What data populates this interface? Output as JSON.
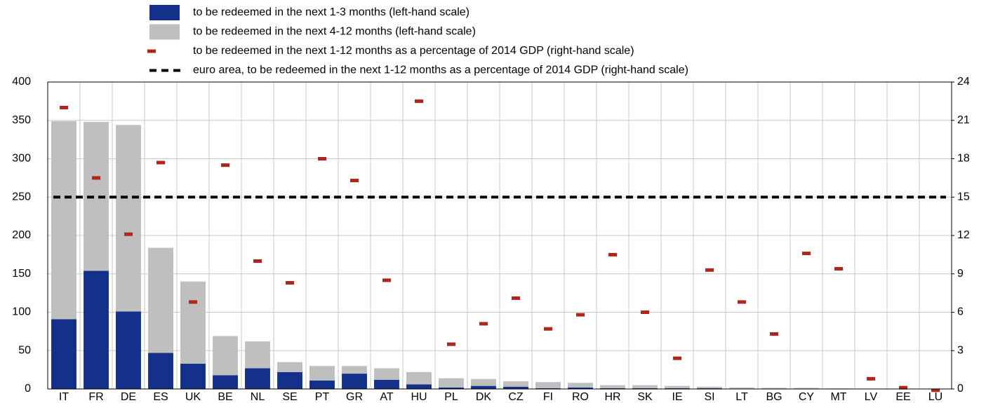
{
  "chart_data": {
    "type": "bar",
    "categories": [
      "IT",
      "FR",
      "DE",
      "ES",
      "UK",
      "BE",
      "NL",
      "SE",
      "PT",
      "GR",
      "AT",
      "HU",
      "PL",
      "DK",
      "CZ",
      "FI",
      "RO",
      "HR",
      "SK",
      "IE",
      "SI",
      "LT",
      "BG",
      "CY",
      "MT",
      "LV",
      "EE",
      "LU"
    ],
    "series": [
      {
        "name": "to be redeemed in the next 1-3 months (left-hand scale)",
        "color": "#13318b",
        "kind": "stacked",
        "values": [
          91,
          154,
          101,
          47,
          33,
          18,
          27,
          22,
          11,
          20,
          12,
          6,
          2,
          4,
          3,
          1,
          2,
          1,
          1,
          1,
          1,
          0.5,
          0.5,
          0.5,
          0.3,
          0.2,
          0.05,
          0
        ]
      },
      {
        "name": "to be redeemed in the next 4-12 months (left-hand scale)",
        "color": "#bfbfbf",
        "kind": "stacked",
        "values": [
          258,
          194,
          243,
          137,
          107,
          51,
          35,
          13,
          19,
          10,
          15,
          16,
          12,
          9,
          7,
          8,
          6,
          4,
          4,
          3,
          2,
          1.5,
          1,
          1,
          0.4,
          0.3,
          0.05,
          0.1
        ]
      },
      {
        "name": "to be redeemed in the next 1-12 months as a percentage of 2014 GDP (right-hand scale)",
        "color": "#b0261a",
        "kind": "marker",
        "axis": "y2",
        "values": [
          22.0,
          16.5,
          12.1,
          17.7,
          6.8,
          17.5,
          10.0,
          8.3,
          18.0,
          16.3,
          8.5,
          22.5,
          3.5,
          5.1,
          7.1,
          4.7,
          5.8,
          10.5,
          6.0,
          2.4,
          9.3,
          6.8,
          4.3,
          10.6,
          9.4,
          0.8,
          0.1,
          -0.1
        ]
      },
      {
        "name": "euro area, to be redeemed in the next 1-12 months as a percentage of 2014 GDP (right-hand scale)",
        "color": "#000000",
        "kind": "hline",
        "axis": "y2",
        "value": 15
      }
    ],
    "ylim": [
      0,
      400
    ],
    "yticks": [
      0,
      50,
      100,
      150,
      200,
      250,
      300,
      350,
      400
    ],
    "y2lim": [
      0,
      24
    ],
    "y2ticks": [
      0,
      3,
      6,
      9,
      12,
      15,
      18,
      21,
      24
    ],
    "grid": true
  }
}
